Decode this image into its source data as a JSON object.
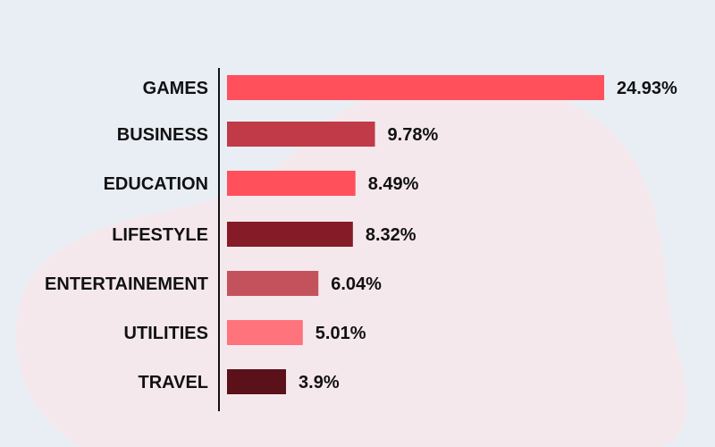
{
  "chart_data": {
    "type": "bar",
    "orientation": "horizontal",
    "categories": [
      "GAMES",
      "BUSINESS",
      "EDUCATION",
      "LIFESTYLE",
      "ENTERTAINEMENT",
      "UTILITIES",
      "TRAVEL"
    ],
    "values": [
      24.93,
      9.78,
      8.49,
      8.32,
      6.04,
      5.01,
      3.9
    ],
    "value_labels": [
      "24.93%",
      "9.78%",
      "8.49%",
      "8.32%",
      "6.04%",
      "5.01%",
      "3.9%"
    ],
    "bar_colors": [
      "#ff505c",
      "#c03a48",
      "#ff505c",
      "#861b28",
      "#c4525c",
      "#ff737c",
      "#5b111a"
    ],
    "title": "",
    "xlabel": "",
    "ylabel": "",
    "xlim": [
      0,
      24.93
    ],
    "grid": false,
    "legend": "none"
  },
  "colors": {
    "background": "#e9eef5",
    "blob": "#f5e8ec",
    "axis": "#111111",
    "text": "#111111"
  }
}
